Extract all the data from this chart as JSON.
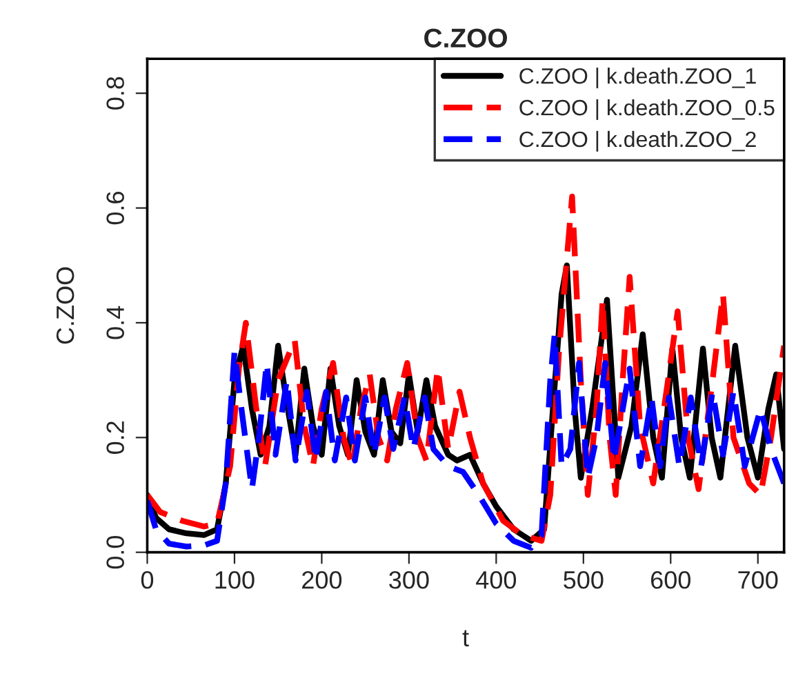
{
  "chart_data": {
    "type": "line",
    "title": "C.ZOO",
    "xlabel": "t",
    "ylabel": "C.ZOO",
    "xlim": [
      0,
      730
    ],
    "ylim": [
      0,
      0.86
    ],
    "xticks": [
      0,
      100,
      200,
      300,
      400,
      500,
      600,
      700
    ],
    "yticks": [
      {
        "value": 0,
        "label": "0.0"
      },
      0.2,
      0.4,
      0.6,
      0.8
    ],
    "grid": false,
    "legend": "top right",
    "marker": "none",
    "series": [
      {
        "name": "C.ZOO | k.death.ZOO_1",
        "color": "#000000",
        "line_style": "solid",
        "x": [
          0,
          10,
          25,
          45,
          65,
          80,
          90,
          100,
          110,
          120,
          130,
          140,
          150,
          160,
          170,
          180,
          190,
          200,
          210,
          220,
          230,
          240,
          250,
          260,
          270,
          280,
          290,
          300,
          310,
          320,
          330,
          345,
          355,
          370,
          385,
          400,
          420,
          440,
          455,
          465,
          475,
          481,
          490,
          497,
          510,
          527,
          540,
          555,
          568,
          580,
          590,
          602,
          612,
          622,
          637,
          647,
          657,
          674,
          688,
          700,
          712,
          721,
          730
        ],
        "values": [
          0.1,
          0.06,
          0.04,
          0.033,
          0.03,
          0.04,
          0.12,
          0.3,
          0.36,
          0.25,
          0.17,
          0.22,
          0.36,
          0.26,
          0.17,
          0.32,
          0.22,
          0.17,
          0.32,
          0.22,
          0.17,
          0.3,
          0.21,
          0.17,
          0.3,
          0.21,
          0.19,
          0.31,
          0.21,
          0.3,
          0.22,
          0.17,
          0.16,
          0.17,
          0.12,
          0.08,
          0.04,
          0.02,
          0.04,
          0.25,
          0.45,
          0.5,
          0.25,
          0.13,
          0.25,
          0.44,
          0.13,
          0.22,
          0.38,
          0.2,
          0.13,
          0.355,
          0.2,
          0.13,
          0.355,
          0.2,
          0.13,
          0.36,
          0.2,
          0.13,
          0.25,
          0.31,
          0.18
        ]
      },
      {
        "name": "C.ZOO | k.death.ZOO_0.5",
        "color": "#ff0000",
        "line_style": "dashed",
        "x": [
          0,
          15,
          40,
          65,
          80,
          95,
          105,
          113,
          125,
          135,
          150,
          169,
          180,
          190,
          200,
          213,
          225,
          235,
          245,
          255,
          265,
          275,
          285,
          298,
          310,
          320,
          333,
          345,
          358,
          370,
          385,
          408,
          430,
          452,
          462,
          472,
          487,
          497,
          505,
          515,
          522,
          530,
          537,
          545,
          553,
          565,
          580,
          597,
          608,
          620,
          632,
          648,
          660,
          672,
          690,
          703,
          715,
          730
        ],
        "values": [
          0.1,
          0.07,
          0.055,
          0.045,
          0.05,
          0.15,
          0.32,
          0.4,
          0.25,
          0.15,
          0.3,
          0.37,
          0.22,
          0.15,
          0.25,
          0.33,
          0.2,
          0.15,
          0.25,
          0.31,
          0.2,
          0.16,
          0.25,
          0.33,
          0.2,
          0.16,
          0.32,
          0.18,
          0.28,
          0.2,
          0.12,
          0.055,
          0.03,
          0.02,
          0.1,
          0.35,
          0.62,
          0.3,
          0.1,
          0.25,
          0.44,
          0.2,
          0.1,
          0.3,
          0.48,
          0.22,
          0.12,
          0.3,
          0.42,
          0.2,
          0.11,
          0.3,
          0.45,
          0.2,
          0.12,
          0.1,
          0.2,
          0.36
        ]
      },
      {
        "name": "C.ZOO | k.death.ZOO_2",
        "color": "#0000ff",
        "line_style": "dashed",
        "x": [
          0,
          10,
          25,
          45,
          65,
          80,
          90,
          100,
          108,
          120,
          128,
          137,
          147,
          160,
          170,
          183,
          193,
          205,
          215,
          228,
          238,
          250,
          260,
          272,
          282,
          295,
          305,
          318,
          328,
          345,
          362,
          380,
          400,
          420,
          440,
          452,
          462,
          467,
          475,
          485,
          495,
          505,
          515,
          525,
          535,
          553,
          565,
          578,
          588,
          598,
          610,
          623,
          635,
          648,
          660,
          672,
          685,
          703,
          715,
          730
        ],
        "values": [
          0.09,
          0.04,
          0.015,
          0.01,
          0.012,
          0.02,
          0.12,
          0.35,
          0.25,
          0.11,
          0.2,
          0.33,
          0.17,
          0.3,
          0.16,
          0.28,
          0.16,
          0.28,
          0.16,
          0.27,
          0.16,
          0.27,
          0.17,
          0.27,
          0.18,
          0.27,
          0.18,
          0.27,
          0.18,
          0.15,
          0.14,
          0.1,
          0.05,
          0.02,
          0.008,
          0.03,
          0.3,
          0.38,
          0.15,
          0.18,
          0.33,
          0.13,
          0.2,
          0.33,
          0.16,
          0.32,
          0.15,
          0.27,
          0.15,
          0.27,
          0.15,
          0.27,
          0.15,
          0.28,
          0.17,
          0.28,
          0.15,
          0.25,
          0.18,
          0.12
        ]
      }
    ]
  }
}
